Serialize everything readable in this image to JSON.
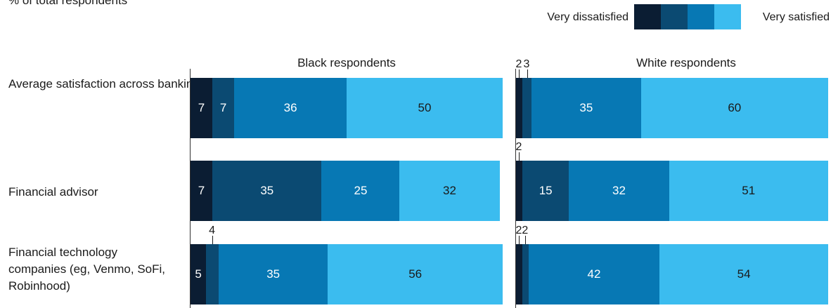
{
  "subtitle": "% of total respondents",
  "legend": {
    "low_label": "Very dissatisfied",
    "high_label": "Very satisfied",
    "colors": [
      "#0b1d33",
      "#0b4a72",
      "#0778b4",
      "#3bbcef"
    ]
  },
  "chart_data": {
    "type": "bar",
    "orientation": "horizontal",
    "stacked": true,
    "categories": [
      "Average satisfaction across banking channels (eg, online, branch, phone)",
      "Financial advisor",
      "Financial technology companies (eg, Venmo, SoFi, Robinhood)"
    ],
    "panels": [
      {
        "title": "Black respondents",
        "series": [
          {
            "name": "Very dissatisfied",
            "values": [
              7,
              7,
              5
            ]
          },
          {
            "values": [
              7,
              35,
              4
            ]
          },
          {
            "values": [
              36,
              25,
              35
            ]
          },
          {
            "name": "Very satisfied",
            "values": [
              50,
              32,
              56
            ]
          }
        ]
      },
      {
        "title": "White respondents",
        "series": [
          {
            "name": "Very dissatisfied",
            "values": [
              2,
              2,
              2
            ]
          },
          {
            "values": [
              3,
              15,
              2
            ]
          },
          {
            "values": [
              35,
              32,
              42
            ]
          },
          {
            "name": "Very satisfied",
            "values": [
              60,
              51,
              54
            ]
          }
        ]
      }
    ],
    "xlim": [
      0,
      100
    ]
  }
}
